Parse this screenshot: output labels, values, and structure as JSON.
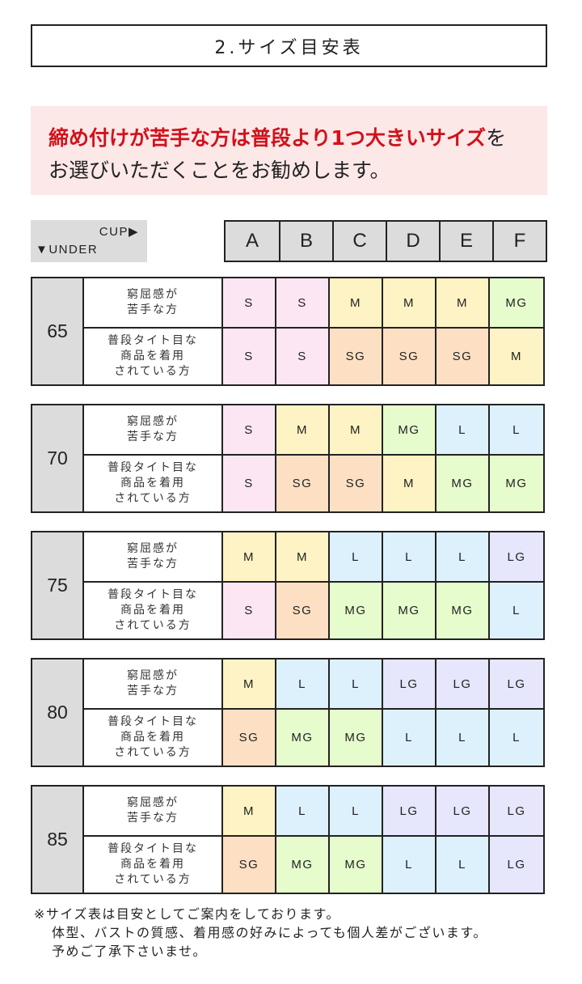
{
  "title": "2.サイズ目安表",
  "banner": {
    "highlight": "締め付けが苦手な方は普段より1つ大きいサイズ",
    "rest1": "を",
    "line2": "お選びいただくことをお勧めします。"
  },
  "corner": {
    "cup": "CUP▶",
    "under": "▼UNDER"
  },
  "cups": [
    "A",
    "B",
    "C",
    "D",
    "E",
    "F"
  ],
  "row_labels": [
    "窮屈感が\n苦手な方",
    "普段タイト目な\n商品を着用\nされている方"
  ],
  "size_colors": {
    "S": "#fce6f4",
    "M": "#fdf3c4",
    "MG": "#e6fccc",
    "SG": "#fde0c4",
    "L": "#dcf1fc",
    "LG": "#e6e6fc"
  },
  "blocks": [
    {
      "under": "65",
      "loose": [
        "S",
        "S",
        "M",
        "M",
        "M",
        "MG"
      ],
      "tight": [
        "S",
        "S",
        "SG",
        "SG",
        "SG",
        "M"
      ]
    },
    {
      "under": "70",
      "loose": [
        "S",
        "M",
        "M",
        "MG",
        "L",
        "L"
      ],
      "tight": [
        "S",
        "SG",
        "SG",
        "M",
        "MG",
        "MG"
      ]
    },
    {
      "under": "75",
      "loose": [
        "M",
        "M",
        "L",
        "L",
        "L",
        "LG"
      ],
      "tight": [
        "S",
        "SG",
        "MG",
        "MG",
        "MG",
        "L"
      ]
    },
    {
      "under": "80",
      "loose": [
        "M",
        "L",
        "L",
        "LG",
        "LG",
        "LG"
      ],
      "tight": [
        "SG",
        "MG",
        "MG",
        "L",
        "L",
        "L"
      ]
    },
    {
      "under": "85",
      "loose": [
        "M",
        "L",
        "L",
        "LG",
        "LG",
        "LG"
      ],
      "tight": [
        "SG",
        "MG",
        "MG",
        "L",
        "L",
        "LG"
      ]
    }
  ],
  "notes": [
    "※サイズ表は目安としてご案内をしております。",
    "体型、バストの質感、着用感の好みによっても個人差がございます。",
    "予めご了承下さいませ。"
  ]
}
